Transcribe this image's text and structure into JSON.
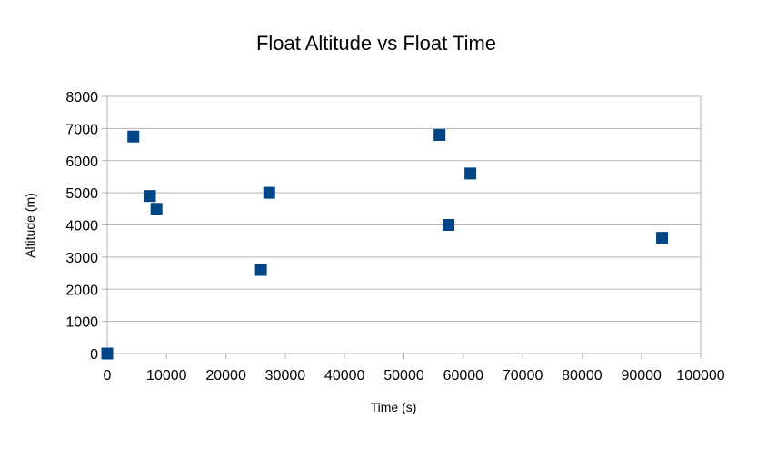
{
  "chart_data": {
    "type": "scatter",
    "title": "Float Altitude vs Float Time",
    "xlabel": "Time (s)",
    "ylabel": "Altitude (m)",
    "xlim": [
      0,
      100000
    ],
    "ylim": [
      0,
      8000
    ],
    "x_ticks": [
      0,
      10000,
      20000,
      30000,
      40000,
      50000,
      60000,
      70000,
      80000,
      90000,
      100000
    ],
    "y_ticks": [
      0,
      1000,
      2000,
      3000,
      4000,
      5000,
      6000,
      7000,
      8000
    ],
    "grid": {
      "horizontal": true,
      "vertical": false
    },
    "legend": "none",
    "marker": "square",
    "marker_color": "#004586",
    "series": [
      {
        "x": [
          0,
          4400,
          7200,
          8300,
          25900,
          27300,
          56000,
          57500,
          61200,
          93500
        ],
        "y": [
          0,
          6750,
          4900,
          4500,
          2600,
          5000,
          6800,
          4000,
          5600,
          3600
        ]
      }
    ]
  }
}
